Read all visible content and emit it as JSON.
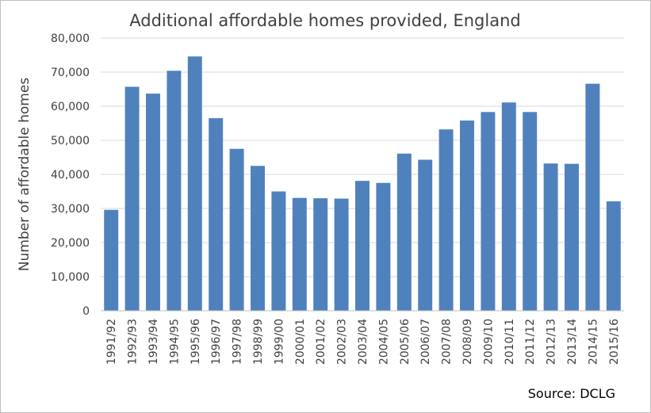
{
  "chart_data": {
    "type": "bar",
    "title": "Additional affordable homes provided, England",
    "ylabel": "Number of affordable homes",
    "xlabel": "",
    "ylim": [
      0,
      80000
    ],
    "yticks": [
      0,
      10000,
      20000,
      30000,
      40000,
      50000,
      60000,
      70000,
      80000
    ],
    "ytick_labels": [
      "0",
      "10,000",
      "20,000",
      "30,000",
      "40,000",
      "50,000",
      "60,000",
      "70,000",
      "80,000"
    ],
    "categories": [
      "1991/92",
      "1992/93",
      "1993/94",
      "1994/95",
      "1995/96",
      "1996/97",
      "1997/98",
      "1998/99",
      "1999/00",
      "2000/01",
      "2001/02",
      "2002/03",
      "2003/04",
      "2004/05",
      "2005/06",
      "2006/07",
      "2007/08",
      "2008/09",
      "2009/10",
      "2010/11",
      "2011/12",
      "2012/13",
      "2013/14",
      "2014/15",
      "2015/16"
    ],
    "values": [
      29600,
      65700,
      63700,
      70400,
      74600,
      56500,
      47500,
      42500,
      35000,
      33100,
      33000,
      32900,
      38100,
      37500,
      46100,
      44300,
      53200,
      55800,
      58300,
      61100,
      58300,
      43200,
      43100,
      66600,
      32100
    ],
    "grid": true,
    "bar_color": "#4f81bd",
    "source": "Source: DCLG"
  }
}
